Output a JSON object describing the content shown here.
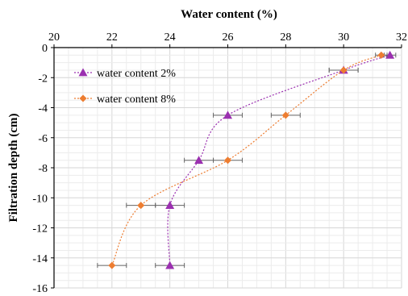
{
  "chart_data": {
    "type": "scatter",
    "xlabel": "Water content (%)",
    "ylabel": "Filtration depth (cm)",
    "xlim": [
      20,
      32
    ],
    "ylim": [
      -16,
      0
    ],
    "x_ticks": [
      20,
      22,
      24,
      26,
      28,
      30,
      32
    ],
    "y_ticks": [
      0,
      -2,
      -4,
      -6,
      -8,
      -10,
      -12,
      -14,
      -16
    ],
    "x_axis_position": "top",
    "grid": true,
    "legend_position": "top-left",
    "series": [
      {
        "name": "water content 2%",
        "color": "#9b30b0",
        "marker": "triangle",
        "line": "dotted-smooth",
        "points": [
          {
            "x": 31.6,
            "y": -0.5,
            "xerr": 0.2
          },
          {
            "x": 30.0,
            "y": -1.5,
            "xerr": 0.5
          },
          {
            "x": 26.0,
            "y": -4.5,
            "xerr": 0.5
          },
          {
            "x": 25.0,
            "y": -7.5,
            "xerr": 0.5
          },
          {
            "x": 24.0,
            "y": -10.5,
            "xerr": 0.5
          },
          {
            "x": 24.0,
            "y": -14.5,
            "xerr": 0.5
          }
        ]
      },
      {
        "name": "water content 8%",
        "color": "#ed7d31",
        "marker": "diamond",
        "line": "dotted-smooth",
        "points": [
          {
            "x": 31.3,
            "y": -0.5,
            "xerr": 0.2
          },
          {
            "x": 30.0,
            "y": -1.5,
            "xerr": 0.5
          },
          {
            "x": 28.0,
            "y": -4.5,
            "xerr": 0.5
          },
          {
            "x": 26.0,
            "y": -7.5,
            "xerr": 0.5
          },
          {
            "x": 23.0,
            "y": -10.5,
            "xerr": 0.5
          },
          {
            "x": 22.0,
            "y": -14.5,
            "xerr": 0.5
          }
        ]
      }
    ]
  }
}
